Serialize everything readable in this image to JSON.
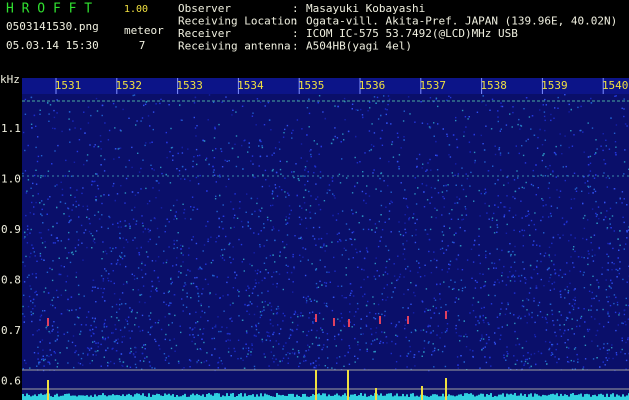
{
  "header": {
    "app": "H R O F F T",
    "version": "1.00",
    "filename": "0503141530.png",
    "datetime": "05.03.14 15:30",
    "meteor_label": "meteor",
    "meteor_count": "7"
  },
  "info": [
    {
      "label": "Observer",
      "sep": ":",
      "value": "Masayuki Kobayashi"
    },
    {
      "label": "Receiving Location",
      "sep": ":",
      "value": "Ogata-vill. Akita-Pref. JAPAN (139.96E, 40.02N)"
    },
    {
      "label": "Receiver",
      "sep": ":",
      "value": "ICOM IC-575 53.7492(@LCD)MHz USB"
    },
    {
      "label": "Receiving antenna",
      "sep": ":",
      "value": "A504HB(yagi 4el)"
    }
  ],
  "axis": {
    "unit": "kHz",
    "yticks": [
      "1.1",
      "1.0",
      "0.9",
      "0.8",
      "0.7",
      "0.6"
    ],
    "xticks": [
      "1531",
      "1532",
      "1533",
      "1534",
      "1535",
      "1536",
      "1537",
      "1538",
      "1539",
      "1540"
    ]
  }
}
